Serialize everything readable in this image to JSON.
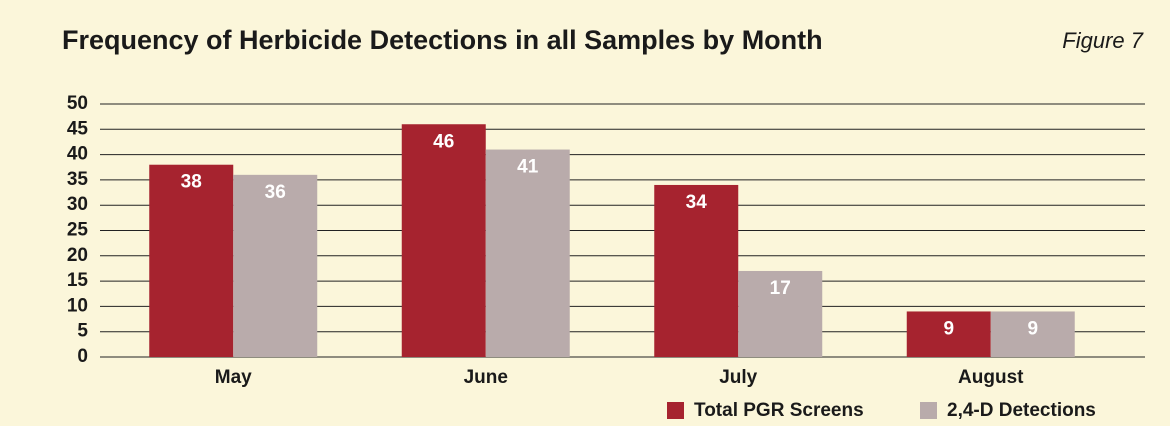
{
  "chart_data": {
    "type": "bar",
    "title": "Frequency of Herbicide Detections in all Samples by Month",
    "figure_label": "Figure 7",
    "categories": [
      "May",
      "June",
      "July",
      "August"
    ],
    "series": [
      {
        "name": "Total PGR Screens",
        "color": "#a6232f",
        "values": [
          38,
          46,
          34,
          9
        ]
      },
      {
        "name": "2,4-D Detections",
        "color": "#b9abab",
        "values": [
          36,
          41,
          17,
          9
        ]
      }
    ],
    "ylim": [
      0,
      50
    ],
    "yticks": [
      0,
      5,
      10,
      15,
      20,
      25,
      30,
      35,
      40,
      45,
      50
    ],
    "grid": true
  }
}
